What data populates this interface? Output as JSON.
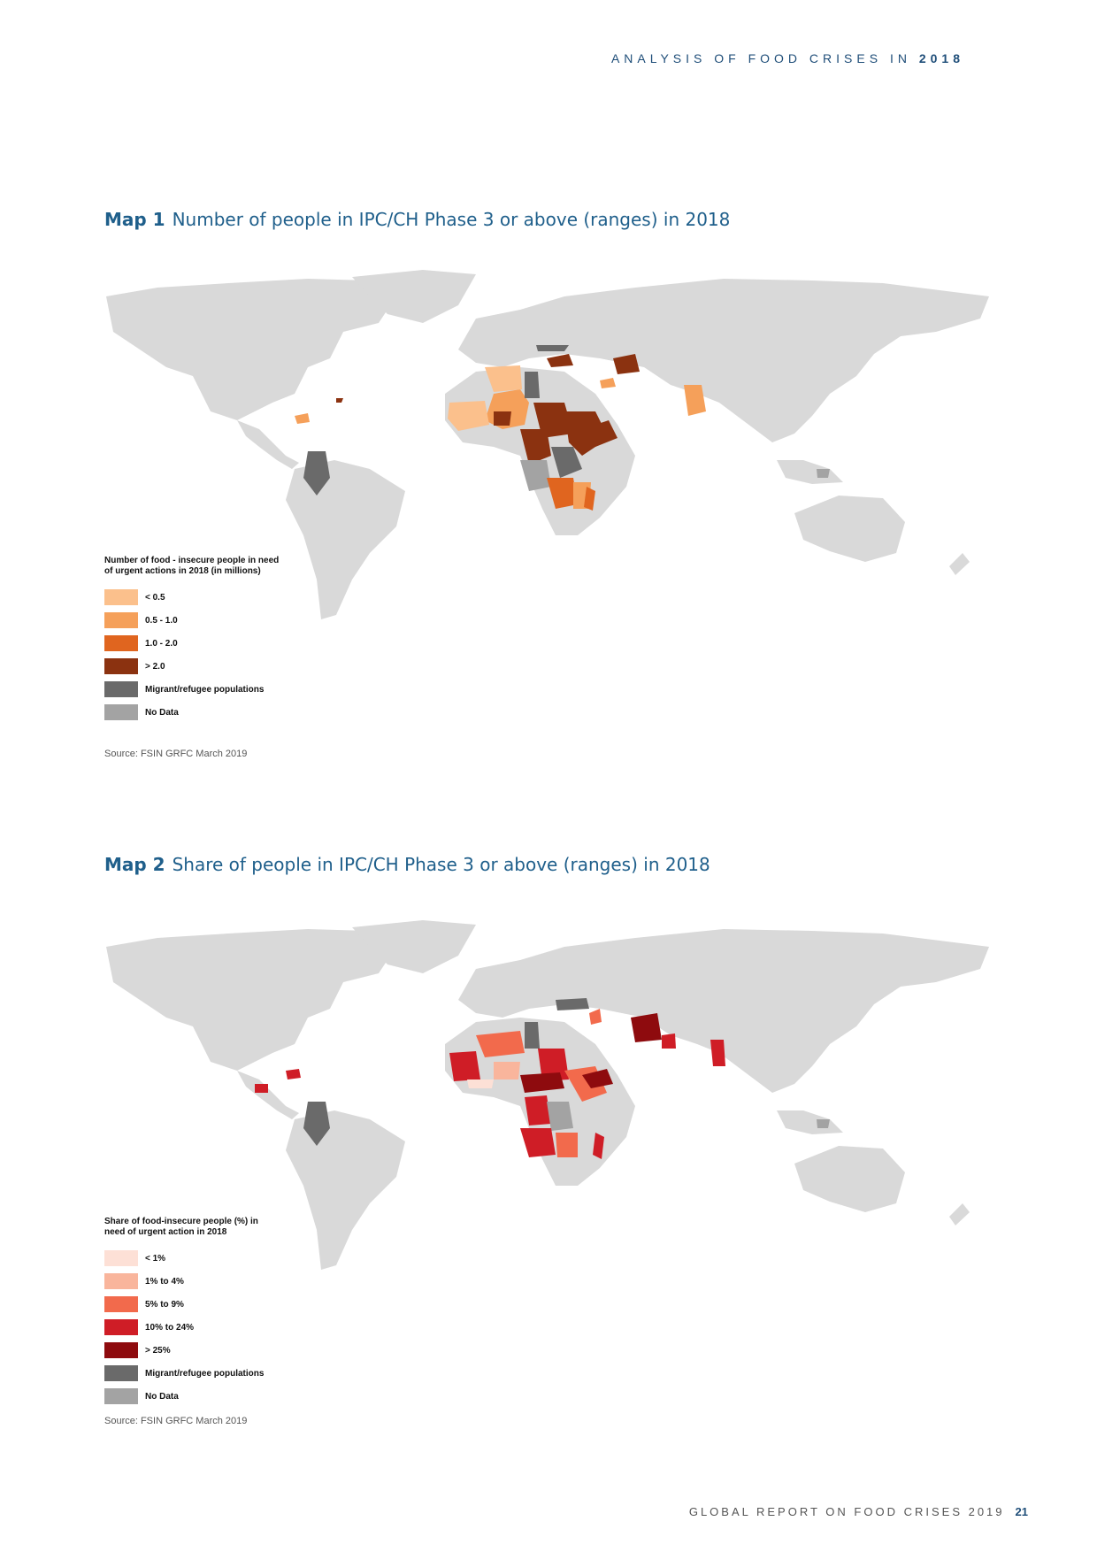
{
  "header": {
    "text": "ANALYSIS OF FOOD CRISES IN",
    "year": "2018"
  },
  "map1": {
    "number": "Map 1",
    "title": "Number of people in IPC/CH Phase 3 or above (ranges) in 2018",
    "legend_title": "Number of food - insecure people in need of urgent actions in 2018 (in millions)",
    "legend": [
      {
        "label": "< 0.5",
        "color": "#fbc08c"
      },
      {
        "label": "0.5 - 1.0",
        "color": "#f5a05a"
      },
      {
        "label": "1.0 - 2.0",
        "color": "#e0651f"
      },
      {
        "label": "> 2.0",
        "color": "#8b3210"
      },
      {
        "label": "Migrant/refugee populations",
        "color": "#6a6a6a"
      },
      {
        "label": "No Data",
        "color": "#a3a3a3"
      }
    ],
    "source": "Source: FSIN GRFC March 2019"
  },
  "map2": {
    "number": "Map 2",
    "title": "Share of people in IPC/CH Phase 3 or above (ranges) in 2018",
    "legend_title": "Share of food-insecure people (%) in need of urgent action in 2018",
    "legend": [
      {
        "label": "< 1%",
        "color": "#fde0d6"
      },
      {
        "label": "1% to 4%",
        "color": "#f9b59c"
      },
      {
        "label": "5% to 9%",
        "color": "#f26a4c"
      },
      {
        "label": "10% to 24%",
        "color": "#cf1d26"
      },
      {
        "label": "> 25%",
        "color": "#8e0b0e"
      },
      {
        "label": "Migrant/refugee populations",
        "color": "#6a6a6a"
      },
      {
        "label": "No Data",
        "color": "#a3a3a3"
      }
    ],
    "source": "Source: FSIN GRFC March 2019"
  },
  "colors": {
    "land": "#d9d9d9",
    "accent": "#1f5f8b"
  },
  "footer": {
    "text": "GLOBAL REPORT ON FOOD CRISES 2019",
    "page": "21"
  }
}
